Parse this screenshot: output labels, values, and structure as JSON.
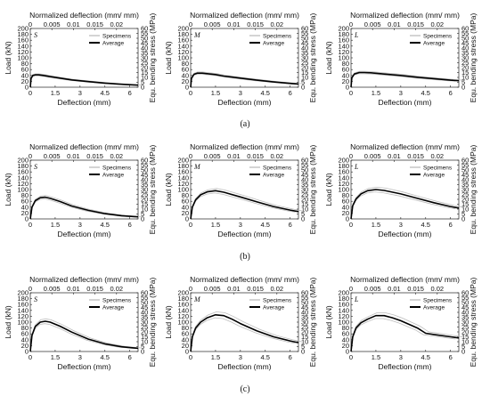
{
  "figure": {
    "row_labels": [
      "(a)",
      "(b)",
      "(c)"
    ],
    "columns": [
      "S",
      "M",
      "L"
    ]
  },
  "axis_text": {
    "top_label": "Normalized deflection (mm/ mm)",
    "bottom_label": "Deflection (mm)",
    "left_label": "Load (kN)",
    "right_label": "Equ. bending stress (MPa)",
    "top_ticks": [
      "0",
      "0.005",
      "0.01",
      "0.015",
      "0.02"
    ],
    "bottom_ticks": [
      "0",
      "1.5",
      "3",
      "4.5",
      "6"
    ],
    "left_ticks": [
      "0",
      "20",
      "40",
      "60",
      "80",
      "100",
      "120",
      "140",
      "160",
      "180",
      "200"
    ],
    "right_ticks": [
      "0",
      "5",
      "10",
      "15",
      "20",
      "25",
      "30",
      "35",
      "40",
      "45",
      "50",
      "55",
      "60"
    ]
  },
  "legend": {
    "specimens": "Specimens",
    "average": "Average"
  },
  "chart_data": [
    {
      "type": "line",
      "group": "(a)",
      "letter": "S",
      "xlabel": "Deflection (mm)",
      "ylabel": "Load (kN)",
      "xlim": [
        0,
        6.5
      ],
      "ylim": [
        0,
        200
      ],
      "series": [
        {
          "name": "Average",
          "x": [
            0,
            0.05,
            0.15,
            0.3,
            0.5,
            0.8,
            1.2,
            1.8,
            2.5,
            3.5,
            4.5,
            5.5,
            6.5
          ],
          "y": [
            0,
            30,
            40,
            42,
            42,
            40,
            36,
            31,
            25,
            19,
            14,
            10,
            7
          ]
        }
      ]
    },
    {
      "type": "line",
      "group": "(a)",
      "letter": "M",
      "xlabel": "Deflection (mm)",
      "ylabel": "Load (kN)",
      "xlim": [
        0,
        6.5
      ],
      "ylim": [
        0,
        200
      ],
      "series": [
        {
          "name": "Average",
          "x": [
            0,
            0.05,
            0.2,
            0.4,
            0.7,
            1.0,
            1.5,
            2.0,
            3.0,
            4.0,
            5.0,
            6.0,
            6.5
          ],
          "y": [
            0,
            30,
            44,
            48,
            48,
            46,
            43,
            38,
            31,
            24,
            18,
            13,
            11
          ]
        }
      ]
    },
    {
      "type": "line",
      "group": "(a)",
      "letter": "L",
      "xlabel": "Deflection (mm)",
      "ylabel": "Load (kN)",
      "xlim": [
        0,
        6.5
      ],
      "ylim": [
        0,
        200
      ],
      "series": [
        {
          "name": "Average",
          "x": [
            0,
            0.05,
            0.2,
            0.5,
            0.8,
            1.2,
            2.0,
            3.0,
            4.0,
            5.0,
            6.0,
            6.5
          ],
          "y": [
            0,
            32,
            45,
            50,
            50,
            49,
            45,
            40,
            34,
            29,
            24,
            22
          ]
        }
      ]
    },
    {
      "type": "line",
      "group": "(b)",
      "letter": "S",
      "xlabel": "Deflection (mm)",
      "ylabel": "Load (kN)",
      "xlim": [
        0,
        6.5
      ],
      "ylim": [
        0,
        200
      ],
      "series": [
        {
          "name": "Average",
          "x": [
            0,
            0.1,
            0.3,
            0.6,
            0.9,
            1.2,
            1.8,
            2.5,
            3.5,
            4.5,
            5.5,
            6.5
          ],
          "y": [
            0,
            40,
            62,
            72,
            74,
            70,
            59,
            44,
            29,
            18,
            11,
            7
          ]
        }
      ]
    },
    {
      "type": "line",
      "group": "(b)",
      "letter": "M",
      "xlabel": "Deflection (mm)",
      "ylabel": "Load (kN)",
      "xlim": [
        0,
        6.5
      ],
      "ylim": [
        0,
        200
      ],
      "series": [
        {
          "name": "Average",
          "x": [
            0,
            0.1,
            0.3,
            0.6,
            1.0,
            1.5,
            2.0,
            3.0,
            4.0,
            5.0,
            6.0,
            6.5
          ],
          "y": [
            0,
            40,
            65,
            82,
            92,
            96,
            91,
            75,
            58,
            42,
            30,
            25
          ]
        }
      ]
    },
    {
      "type": "line",
      "group": "(b)",
      "letter": "L",
      "xlabel": "Deflection (mm)",
      "ylabel": "Load (kN)",
      "xlim": [
        0,
        6.5
      ],
      "ylim": [
        0,
        200
      ],
      "series": [
        {
          "name": "Average",
          "x": [
            0,
            0.1,
            0.3,
            0.6,
            1.0,
            1.5,
            2.0,
            3.0,
            4.0,
            5.0,
            6.0,
            6.5
          ],
          "y": [
            0,
            45,
            68,
            85,
            96,
            100,
            97,
            85,
            70,
            55,
            42,
            37
          ]
        }
      ]
    },
    {
      "type": "line",
      "group": "(c)",
      "letter": "S",
      "xlabel": "Deflection (mm)",
      "ylabel": "Load (kN)",
      "xlim": [
        0,
        6.5
      ],
      "ylim": [
        0,
        200
      ],
      "series": [
        {
          "name": "Average",
          "x": [
            0,
            0.1,
            0.3,
            0.6,
            0.9,
            1.2,
            1.8,
            2.5,
            3.5,
            4.5,
            5.5,
            6.5
          ],
          "y": [
            0,
            55,
            85,
            100,
            103,
            100,
            86,
            66,
            42,
            26,
            16,
            11
          ]
        }
      ]
    },
    {
      "type": "line",
      "group": "(c)",
      "letter": "M",
      "xlabel": "Deflection (mm)",
      "ylabel": "Load (kN)",
      "xlim": [
        0,
        6.5
      ],
      "ylim": [
        0,
        200
      ],
      "series": [
        {
          "name": "Average",
          "x": [
            0,
            0.1,
            0.3,
            0.6,
            1.0,
            1.5,
            2.0,
            2.5,
            3.0,
            4.0,
            5.0,
            6.0,
            6.5
          ],
          "y": [
            0,
            50,
            80,
            100,
            115,
            125,
            122,
            110,
            95,
            70,
            50,
            36,
            30
          ]
        }
      ]
    },
    {
      "type": "line",
      "group": "(c)",
      "letter": "L",
      "xlabel": "Deflection (mm)",
      "ylabel": "Load (kN)",
      "xlim": [
        0,
        6.5
      ],
      "ylim": [
        0,
        200
      ],
      "series": [
        {
          "name": "Average",
          "x": [
            0,
            0.1,
            0.3,
            0.6,
            1.0,
            1.5,
            2.0,
            2.5,
            3.0,
            4.0,
            4.5,
            5.0,
            6.0,
            6.5
          ],
          "y": [
            0,
            50,
            80,
            98,
            110,
            122,
            122,
            115,
            105,
            80,
            62,
            58,
            50,
            46
          ]
        }
      ]
    }
  ]
}
